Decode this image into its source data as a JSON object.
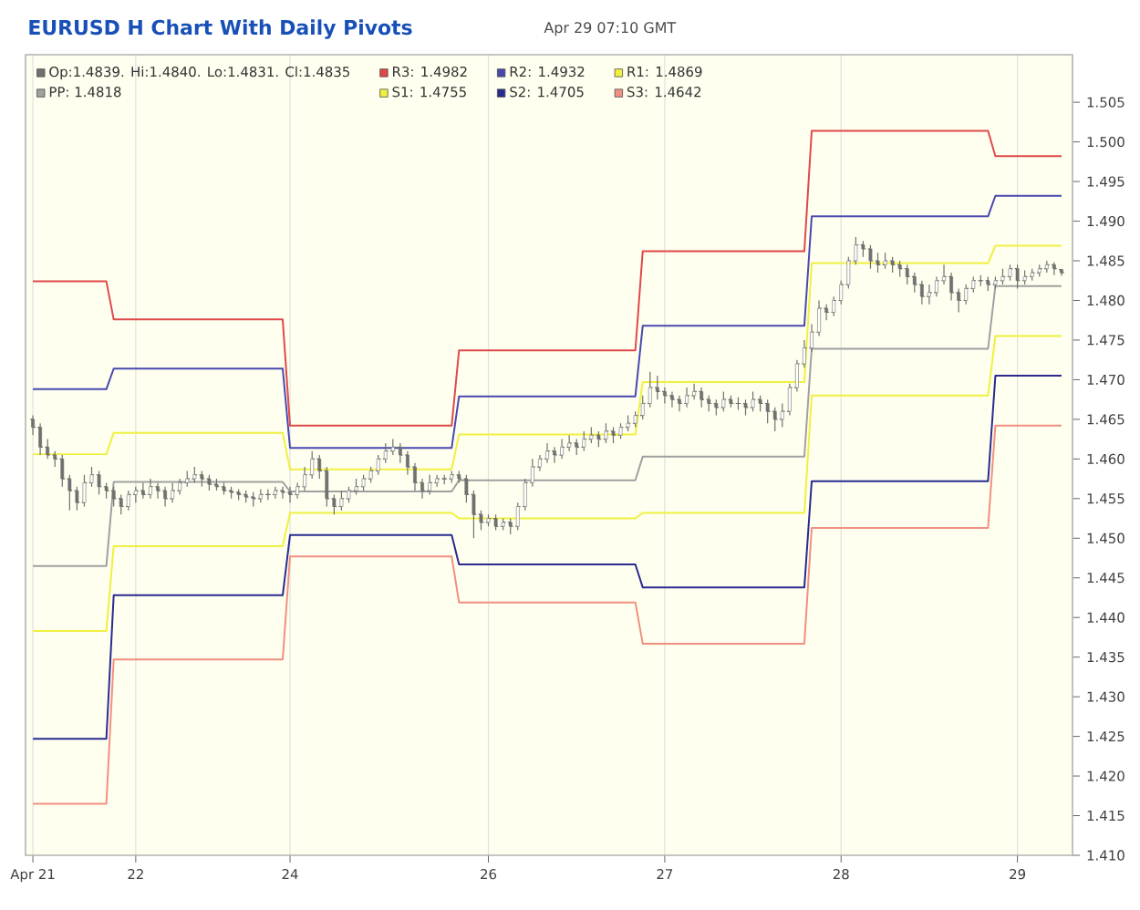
{
  "chart_data": {
    "type": "candlestick",
    "title": "EURUSD H Chart With Daily Pivots",
    "subtitle": "Apr 29 07:10 GMT",
    "categories": [
      "Apr 21",
      null,
      null,
      null,
      null,
      null,
      null,
      null,
      null,
      null,
      null,
      null,
      null,
      null,
      "22",
      null,
      null,
      null,
      null,
      null,
      null,
      null,
      null,
      null,
      null,
      null,
      null,
      null,
      null,
      null,
      null,
      null,
      null,
      null,
      null,
      "24",
      null,
      null,
      null,
      null,
      null,
      null,
      null,
      null,
      null,
      null,
      null,
      null,
      null,
      null,
      null,
      null,
      null,
      null,
      null,
      null,
      null,
      null,
      null,
      null,
      null,
      null,
      "26",
      null,
      null,
      null,
      null,
      null,
      null,
      null,
      null,
      null,
      null,
      null,
      null,
      null,
      null,
      null,
      null,
      null,
      null,
      null,
      null,
      null,
      null,
      null,
      "27",
      null,
      null,
      null,
      null,
      null,
      null,
      null,
      null,
      null,
      null,
      null,
      null,
      null,
      null,
      null,
      null,
      null,
      null,
      null,
      null,
      null,
      null,
      null,
      "28",
      null,
      null,
      null,
      null,
      null,
      null,
      null,
      null,
      null,
      null,
      null,
      null,
      null,
      null,
      null,
      null,
      null,
      null,
      null,
      null,
      null,
      null,
      null,
      "29",
      null,
      null,
      null,
      null,
      null,
      null
    ],
    "ylim": [
      1.41,
      1.511
    ],
    "yticks": [
      {
        "value": 1.41,
        "label": "1.410"
      },
      1.415,
      {
        "value": 1.42,
        "label": "1.420"
      },
      1.425,
      {
        "value": 1.43,
        "label": "1.430"
      },
      1.435,
      {
        "value": 1.44,
        "label": "1.440"
      },
      1.445,
      {
        "value": 1.45,
        "label": "1.450"
      },
      1.455,
      {
        "value": 1.46,
        "label": "1.460"
      },
      1.465,
      {
        "value": 1.47,
        "label": "1.470"
      },
      1.475,
      {
        "value": 1.48,
        "label": "1.480"
      },
      1.485,
      {
        "value": 1.49,
        "label": "1.490"
      },
      1.495,
      {
        "value": 1.5,
        "label": "1.500"
      },
      1.505
    ],
    "grid": "x",
    "legend": "top left",
    "series": [
      {
        "name": "Op:1.4839. Hi:1.4840. Lo:1.4831. Cl:1.4835",
        "color": "#707070",
        "ohlc": [
          [
            1.465,
            1.4655,
            1.463,
            1.464
          ],
          [
            1.464,
            1.4645,
            1.4605,
            1.4615
          ],
          [
            1.4615,
            1.4625,
            1.46,
            1.4605
          ],
          [
            1.4605,
            1.461,
            1.459,
            1.46
          ],
          [
            1.46,
            1.4605,
            1.4565,
            1.4575
          ],
          [
            1.4575,
            1.458,
            1.4535,
            1.456
          ],
          [
            1.456,
            1.4565,
            1.4535,
            1.4545
          ],
          [
            1.4545,
            1.458,
            1.454,
            1.457
          ],
          [
            1.457,
            1.459,
            1.4565,
            1.458
          ],
          [
            1.458,
            1.4585,
            1.4555,
            1.4565
          ],
          [
            1.4565,
            1.457,
            1.455,
            1.456
          ],
          [
            1.456,
            1.4565,
            1.454,
            1.455
          ],
          [
            1.455,
            1.4555,
            1.453,
            1.454
          ],
          [
            1.454,
            1.456,
            1.4535,
            1.4555
          ],
          [
            1.4555,
            1.4565,
            1.4545,
            1.456
          ],
          [
            1.456,
            1.457,
            1.455,
            1.4555
          ],
          [
            1.4555,
            1.4575,
            1.455,
            1.4565
          ],
          [
            1.4565,
            1.457,
            1.455,
            1.456
          ],
          [
            1.456,
            1.4565,
            1.454,
            1.455
          ],
          [
            1.455,
            1.457,
            1.4545,
            1.456
          ],
          [
            1.456,
            1.4575,
            1.4555,
            1.457
          ],
          [
            1.457,
            1.4585,
            1.4565,
            1.4575
          ],
          [
            1.4575,
            1.459,
            1.457,
            1.458
          ],
          [
            1.458,
            1.4585,
            1.4565,
            1.4575
          ],
          [
            1.4575,
            1.458,
            1.456,
            1.4568
          ],
          [
            1.4568,
            1.4575,
            1.456,
            1.4565
          ],
          [
            1.4565,
            1.457,
            1.4555,
            1.456
          ],
          [
            1.456,
            1.4565,
            1.455,
            1.4558
          ],
          [
            1.4558,
            1.4562,
            1.4548,
            1.4555
          ],
          [
            1.4555,
            1.456,
            1.4545,
            1.4552
          ],
          [
            1.4552,
            1.4558,
            1.454,
            1.455
          ],
          [
            1.455,
            1.4562,
            1.4545,
            1.4555
          ],
          [
            1.4555,
            1.4562,
            1.4548,
            1.4555
          ],
          [
            1.4555,
            1.4565,
            1.455,
            1.456
          ],
          [
            1.456,
            1.4565,
            1.455,
            1.4558
          ],
          [
            1.4558,
            1.4565,
            1.4545,
            1.4555
          ],
          [
            1.4555,
            1.457,
            1.455,
            1.4565
          ],
          [
            1.4565,
            1.459,
            1.456,
            1.458
          ],
          [
            1.458,
            1.461,
            1.4575,
            1.46
          ],
          [
            1.46,
            1.4605,
            1.4575,
            1.4585
          ],
          [
            1.4585,
            1.459,
            1.454,
            1.455
          ],
          [
            1.455,
            1.4555,
            1.453,
            1.454
          ],
          [
            1.454,
            1.456,
            1.4535,
            1.455
          ],
          [
            1.455,
            1.4565,
            1.4545,
            1.456
          ],
          [
            1.456,
            1.4575,
            1.4555,
            1.4565
          ],
          [
            1.4565,
            1.458,
            1.456,
            1.4575
          ],
          [
            1.4575,
            1.459,
            1.457,
            1.4585
          ],
          [
            1.4585,
            1.4605,
            1.458,
            1.46
          ],
          [
            1.46,
            1.462,
            1.4595,
            1.461
          ],
          [
            1.461,
            1.4625,
            1.4605,
            1.4615
          ],
          [
            1.4615,
            1.462,
            1.4595,
            1.4605
          ],
          [
            1.4605,
            1.461,
            1.458,
            1.459
          ],
          [
            1.459,
            1.4595,
            1.456,
            1.457
          ],
          [
            1.457,
            1.4575,
            1.455,
            1.456
          ],
          [
            1.456,
            1.458,
            1.4555,
            1.457
          ],
          [
            1.457,
            1.458,
            1.4565,
            1.4575
          ],
          [
            1.4575,
            1.458,
            1.4568,
            1.4575
          ],
          [
            1.4575,
            1.4585,
            1.457,
            1.458
          ],
          [
            1.458,
            1.4585,
            1.457,
            1.4575
          ],
          [
            1.4575,
            1.458,
            1.4545,
            1.4555
          ],
          [
            1.4555,
            1.456,
            1.45,
            1.453
          ],
          [
            1.453,
            1.4535,
            1.451,
            1.452
          ],
          [
            1.452,
            1.453,
            1.4515,
            1.4525
          ],
          [
            1.4525,
            1.453,
            1.451,
            1.4515
          ],
          [
            1.4515,
            1.4525,
            1.451,
            1.452
          ],
          [
            1.452,
            1.4525,
            1.4505,
            1.4515
          ],
          [
            1.4515,
            1.4545,
            1.451,
            1.454
          ],
          [
            1.454,
            1.4575,
            1.4535,
            1.457
          ],
          [
            1.457,
            1.46,
            1.4565,
            1.459
          ],
          [
            1.459,
            1.4605,
            1.4585,
            1.46
          ],
          [
            1.46,
            1.462,
            1.4595,
            1.461
          ],
          [
            1.461,
            1.4615,
            1.4595,
            1.4605
          ],
          [
            1.4605,
            1.4625,
            1.46,
            1.4615
          ],
          [
            1.4615,
            1.463,
            1.461,
            1.462
          ],
          [
            1.462,
            1.4625,
            1.4605,
            1.4615
          ],
          [
            1.4615,
            1.4635,
            1.461,
            1.4625
          ],
          [
            1.4625,
            1.464,
            1.462,
            1.463
          ],
          [
            1.463,
            1.4635,
            1.4615,
            1.4625
          ],
          [
            1.4625,
            1.4645,
            1.462,
            1.4635
          ],
          [
            1.4635,
            1.464,
            1.462,
            1.463
          ],
          [
            1.463,
            1.4645,
            1.4625,
            1.464
          ],
          [
            1.464,
            1.4655,
            1.4635,
            1.4645
          ],
          [
            1.4645,
            1.466,
            1.464,
            1.4655
          ],
          [
            1.4655,
            1.468,
            1.465,
            1.467
          ],
          [
            1.467,
            1.471,
            1.4665,
            1.469
          ],
          [
            1.469,
            1.4705,
            1.4675,
            1.4685
          ],
          [
            1.4685,
            1.469,
            1.467,
            1.468
          ],
          [
            1.468,
            1.4685,
            1.4665,
            1.4675
          ],
          [
            1.4675,
            1.468,
            1.466,
            1.467
          ],
          [
            1.467,
            1.469,
            1.4665,
            1.468
          ],
          [
            1.468,
            1.4695,
            1.4675,
            1.4685
          ],
          [
            1.4685,
            1.469,
            1.4665,
            1.4675
          ],
          [
            1.4675,
            1.468,
            1.466,
            1.467
          ],
          [
            1.467,
            1.4675,
            1.4655,
            1.4665
          ],
          [
            1.4665,
            1.4685,
            1.466,
            1.4675
          ],
          [
            1.4675,
            1.468,
            1.4665,
            1.467
          ],
          [
            1.467,
            1.4678,
            1.4662,
            1.467
          ],
          [
            1.467,
            1.4675,
            1.4655,
            1.4665
          ],
          [
            1.4665,
            1.4685,
            1.466,
            1.4675
          ],
          [
            1.4675,
            1.468,
            1.466,
            1.467
          ],
          [
            1.467,
            1.4675,
            1.4645,
            1.466
          ],
          [
            1.466,
            1.4665,
            1.4635,
            1.465
          ],
          [
            1.465,
            1.467,
            1.464,
            1.466
          ],
          [
            1.466,
            1.4695,
            1.4655,
            1.469
          ],
          [
            1.469,
            1.4725,
            1.4685,
            1.472
          ],
          [
            1.472,
            1.475,
            1.4715,
            1.474
          ],
          [
            1.474,
            1.477,
            1.4735,
            1.476
          ],
          [
            1.476,
            1.48,
            1.4755,
            1.479
          ],
          [
            1.479,
            1.4795,
            1.4775,
            1.4785
          ],
          [
            1.4785,
            1.4805,
            1.478,
            1.48
          ],
          [
            1.48,
            1.4825,
            1.4795,
            1.482
          ],
          [
            1.482,
            1.4855,
            1.4815,
            1.485
          ],
          [
            1.485,
            1.488,
            1.4845,
            1.487
          ],
          [
            1.487,
            1.4875,
            1.4855,
            1.4865
          ],
          [
            1.4865,
            1.487,
            1.484,
            1.485
          ],
          [
            1.485,
            1.486,
            1.4835,
            1.4845
          ],
          [
            1.4845,
            1.486,
            1.484,
            1.485
          ],
          [
            1.485,
            1.4855,
            1.4835,
            1.4845
          ],
          [
            1.4845,
            1.485,
            1.483,
            1.484
          ],
          [
            1.484,
            1.4845,
            1.482,
            1.483
          ],
          [
            1.483,
            1.4835,
            1.481,
            1.482
          ],
          [
            1.482,
            1.4825,
            1.4795,
            1.4805
          ],
          [
            1.4805,
            1.482,
            1.4795,
            1.481
          ],
          [
            1.481,
            1.483,
            1.4805,
            1.4825
          ],
          [
            1.4825,
            1.4845,
            1.482,
            1.483
          ],
          [
            1.483,
            1.4835,
            1.48,
            1.481
          ],
          [
            1.481,
            1.4815,
            1.4785,
            1.48
          ],
          [
            1.48,
            1.482,
            1.4795,
            1.4815
          ],
          [
            1.4815,
            1.483,
            1.481,
            1.4825
          ],
          [
            1.4825,
            1.4832,
            1.4818,
            1.4825
          ],
          [
            1.4825,
            1.483,
            1.4812,
            1.482
          ],
          [
            1.482,
            1.483,
            1.4815,
            1.4825
          ],
          [
            1.4825,
            1.484,
            1.482,
            1.483
          ],
          [
            1.483,
            1.4845,
            1.4825,
            1.484
          ],
          [
            1.484,
            1.4845,
            1.4815,
            1.4825
          ],
          [
            1.4825,
            1.4838,
            1.482,
            1.483
          ],
          [
            1.483,
            1.484,
            1.4825,
            1.4835
          ],
          [
            1.4835,
            1.4845,
            1.483,
            1.484
          ],
          [
            1.484,
            1.485,
            1.4835,
            1.4845
          ],
          [
            1.4845,
            1.4848,
            1.4832,
            1.484
          ],
          [
            1.4839,
            1.484,
            1.4831,
            1.4835
          ]
        ]
      },
      {
        "type": "line",
        "name": "R3: 1.4982",
        "color": "#e04848",
        "values": [
          1.4824,
          1.4824,
          1.4824,
          1.4824,
          1.4824,
          1.4824,
          1.4824,
          1.4824,
          1.4824,
          1.4824,
          1.4824,
          1.4776,
          1.4776,
          1.4776,
          1.4776,
          1.4776,
          1.4776,
          1.4776,
          1.4776,
          1.4776,
          1.4776,
          1.4776,
          1.4776,
          1.4776,
          1.4776,
          1.4776,
          1.4776,
          1.4776,
          1.4776,
          1.4776,
          1.4776,
          1.4776,
          1.4776,
          1.4776,
          1.4776,
          1.4642,
          1.4642,
          1.4642,
          1.4642,
          1.4642,
          1.4642,
          1.4642,
          1.4642,
          1.4642,
          1.4642,
          1.4642,
          1.4642,
          1.4642,
          1.4642,
          1.4642,
          1.4642,
          1.4642,
          1.4642,
          1.4642,
          1.4642,
          1.4642,
          1.4642,
          1.4642,
          1.4737,
          1.4737,
          1.4737,
          1.4737,
          1.4737,
          1.4737,
          1.4737,
          1.4737,
          1.4737,
          1.4737,
          1.4737,
          1.4737,
          1.4737,
          1.4737,
          1.4737,
          1.4737,
          1.4737,
          1.4737,
          1.4737,
          1.4737,
          1.4737,
          1.4737,
          1.4737,
          1.4737,
          1.4737,
          1.4862,
          1.4862,
          1.4862,
          1.4862,
          1.4862,
          1.4862,
          1.4862,
          1.4862,
          1.4862,
          1.4862,
          1.4862,
          1.4862,
          1.4862,
          1.4862,
          1.4862,
          1.4862,
          1.4862,
          1.4862,
          1.4862,
          1.4862,
          1.4862,
          1.4862,
          1.4862,
          1.5014,
          1.5014,
          1.5014,
          1.5014,
          1.5014,
          1.5014,
          1.5014,
          1.5014,
          1.5014,
          1.5014,
          1.5014,
          1.5014,
          1.5014,
          1.5014,
          1.5014,
          1.5014,
          1.5014,
          1.5014,
          1.5014,
          1.5014,
          1.5014,
          1.5014,
          1.5014,
          1.5014,
          1.5014,
          1.4982,
          1.4982,
          1.4982,
          1.4982,
          1.4982,
          1.4982,
          1.4982,
          1.4982,
          1.4982,
          1.4982
        ]
      },
      {
        "type": "line",
        "name": "R2: 1.4932",
        "color": "#4848b0",
        "values": [
          1.4688,
          1.4688,
          1.4688,
          1.4688,
          1.4688,
          1.4688,
          1.4688,
          1.4688,
          1.4688,
          1.4688,
          1.4688,
          1.4714,
          1.4714,
          1.4714,
          1.4714,
          1.4714,
          1.4714,
          1.4714,
          1.4714,
          1.4714,
          1.4714,
          1.4714,
          1.4714,
          1.4714,
          1.4714,
          1.4714,
          1.4714,
          1.4714,
          1.4714,
          1.4714,
          1.4714,
          1.4714,
          1.4714,
          1.4714,
          1.4714,
          1.4614,
          1.4614,
          1.4614,
          1.4614,
          1.4614,
          1.4614,
          1.4614,
          1.4614,
          1.4614,
          1.4614,
          1.4614,
          1.4614,
          1.4614,
          1.4614,
          1.4614,
          1.4614,
          1.4614,
          1.4614,
          1.4614,
          1.4614,
          1.4614,
          1.4614,
          1.4614,
          1.4679,
          1.4679,
          1.4679,
          1.4679,
          1.4679,
          1.4679,
          1.4679,
          1.4679,
          1.4679,
          1.4679,
          1.4679,
          1.4679,
          1.4679,
          1.4679,
          1.4679,
          1.4679,
          1.4679,
          1.4679,
          1.4679,
          1.4679,
          1.4679,
          1.4679,
          1.4679,
          1.4679,
          1.4679,
          1.4768,
          1.4768,
          1.4768,
          1.4768,
          1.4768,
          1.4768,
          1.4768,
          1.4768,
          1.4768,
          1.4768,
          1.4768,
          1.4768,
          1.4768,
          1.4768,
          1.4768,
          1.4768,
          1.4768,
          1.4768,
          1.4768,
          1.4768,
          1.4768,
          1.4768,
          1.4768,
          1.4906,
          1.4906,
          1.4906,
          1.4906,
          1.4906,
          1.4906,
          1.4906,
          1.4906,
          1.4906,
          1.4906,
          1.4906,
          1.4906,
          1.4906,
          1.4906,
          1.4906,
          1.4906,
          1.4906,
          1.4906,
          1.4906,
          1.4906,
          1.4906,
          1.4906,
          1.4906,
          1.4906,
          1.4906,
          1.4932,
          1.4932,
          1.4932,
          1.4932,
          1.4932,
          1.4932,
          1.4932,
          1.4932,
          1.4932,
          1.4932
        ]
      },
      {
        "type": "line",
        "name": "R1: 1.4869",
        "color": "#f0f040",
        "values": [
          1.4606,
          1.4606,
          1.4606,
          1.4606,
          1.4606,
          1.4606,
          1.4606,
          1.4606,
          1.4606,
          1.4606,
          1.4606,
          1.4633,
          1.4633,
          1.4633,
          1.4633,
          1.4633,
          1.4633,
          1.4633,
          1.4633,
          1.4633,
          1.4633,
          1.4633,
          1.4633,
          1.4633,
          1.4633,
          1.4633,
          1.4633,
          1.4633,
          1.4633,
          1.4633,
          1.4633,
          1.4633,
          1.4633,
          1.4633,
          1.4633,
          1.4587,
          1.4587,
          1.4587,
          1.4587,
          1.4587,
          1.4587,
          1.4587,
          1.4587,
          1.4587,
          1.4587,
          1.4587,
          1.4587,
          1.4587,
          1.4587,
          1.4587,
          1.4587,
          1.4587,
          1.4587,
          1.4587,
          1.4587,
          1.4587,
          1.4587,
          1.4587,
          1.4631,
          1.4631,
          1.4631,
          1.4631,
          1.4631,
          1.4631,
          1.4631,
          1.4631,
          1.4631,
          1.4631,
          1.4631,
          1.4631,
          1.4631,
          1.4631,
          1.4631,
          1.4631,
          1.4631,
          1.4631,
          1.4631,
          1.4631,
          1.4631,
          1.4631,
          1.4631,
          1.4631,
          1.4631,
          1.4697,
          1.4697,
          1.4697,
          1.4697,
          1.4697,
          1.4697,
          1.4697,
          1.4697,
          1.4697,
          1.4697,
          1.4697,
          1.4697,
          1.4697,
          1.4697,
          1.4697,
          1.4697,
          1.4697,
          1.4697,
          1.4697,
          1.4697,
          1.4697,
          1.4697,
          1.4697,
          1.4847,
          1.4847,
          1.4847,
          1.4847,
          1.4847,
          1.4847,
          1.4847,
          1.4847,
          1.4847,
          1.4847,
          1.4847,
          1.4847,
          1.4847,
          1.4847,
          1.4847,
          1.4847,
          1.4847,
          1.4847,
          1.4847,
          1.4847,
          1.4847,
          1.4847,
          1.4847,
          1.4847,
          1.4847,
          1.4869,
          1.4869,
          1.4869,
          1.4869,
          1.4869,
          1.4869,
          1.4869,
          1.4869,
          1.4869,
          1.4869
        ]
      },
      {
        "type": "line",
        "name": "PP: 1.4818",
        "color": "#a0a0a0",
        "values": [
          1.4465,
          1.4465,
          1.4465,
          1.4465,
          1.4465,
          1.4465,
          1.4465,
          1.4465,
          1.4465,
          1.4465,
          1.4465,
          1.4571,
          1.4571,
          1.4571,
          1.4571,
          1.4571,
          1.4571,
          1.4571,
          1.4571,
          1.4571,
          1.4571,
          1.4571,
          1.4571,
          1.4571,
          1.4571,
          1.4571,
          1.4571,
          1.4571,
          1.4571,
          1.4571,
          1.4571,
          1.4571,
          1.4571,
          1.4571,
          1.4571,
          1.4559,
          1.4559,
          1.4559,
          1.4559,
          1.4559,
          1.4559,
          1.4559,
          1.4559,
          1.4559,
          1.4559,
          1.4559,
          1.4559,
          1.4559,
          1.4559,
          1.4559,
          1.4559,
          1.4559,
          1.4559,
          1.4559,
          1.4559,
          1.4559,
          1.4559,
          1.4559,
          1.4573,
          1.4573,
          1.4573,
          1.4573,
          1.4573,
          1.4573,
          1.4573,
          1.4573,
          1.4573,
          1.4573,
          1.4573,
          1.4573,
          1.4573,
          1.4573,
          1.4573,
          1.4573,
          1.4573,
          1.4573,
          1.4573,
          1.4573,
          1.4573,
          1.4573,
          1.4573,
          1.4573,
          1.4573,
          1.4603,
          1.4603,
          1.4603,
          1.4603,
          1.4603,
          1.4603,
          1.4603,
          1.4603,
          1.4603,
          1.4603,
          1.4603,
          1.4603,
          1.4603,
          1.4603,
          1.4603,
          1.4603,
          1.4603,
          1.4603,
          1.4603,
          1.4603,
          1.4603,
          1.4603,
          1.4603,
          1.4739,
          1.4739,
          1.4739,
          1.4739,
          1.4739,
          1.4739,
          1.4739,
          1.4739,
          1.4739,
          1.4739,
          1.4739,
          1.4739,
          1.4739,
          1.4739,
          1.4739,
          1.4739,
          1.4739,
          1.4739,
          1.4739,
          1.4739,
          1.4739,
          1.4739,
          1.4739,
          1.4739,
          1.4739,
          1.4818,
          1.4818,
          1.4818,
          1.4818,
          1.4818,
          1.4818,
          1.4818,
          1.4818,
          1.4818,
          1.4818
        ]
      },
      {
        "type": "line",
        "name": "S1: 1.4755",
        "color": "#f0f040",
        "values": [
          1.4383,
          1.4383,
          1.4383,
          1.4383,
          1.4383,
          1.4383,
          1.4383,
          1.4383,
          1.4383,
          1.4383,
          1.4383,
          1.449,
          1.449,
          1.449,
          1.449,
          1.449,
          1.449,
          1.449,
          1.449,
          1.449,
          1.449,
          1.449,
          1.449,
          1.449,
          1.449,
          1.449,
          1.449,
          1.449,
          1.449,
          1.449,
          1.449,
          1.449,
          1.449,
          1.449,
          1.449,
          1.4532,
          1.4532,
          1.4532,
          1.4532,
          1.4532,
          1.4532,
          1.4532,
          1.4532,
          1.4532,
          1.4532,
          1.4532,
          1.4532,
          1.4532,
          1.4532,
          1.4532,
          1.4532,
          1.4532,
          1.4532,
          1.4532,
          1.4532,
          1.4532,
          1.4532,
          1.4532,
          1.4525,
          1.4525,
          1.4525,
          1.4525,
          1.4525,
          1.4525,
          1.4525,
          1.4525,
          1.4525,
          1.4525,
          1.4525,
          1.4525,
          1.4525,
          1.4525,
          1.4525,
          1.4525,
          1.4525,
          1.4525,
          1.4525,
          1.4525,
          1.4525,
          1.4525,
          1.4525,
          1.4525,
          1.4525,
          1.4532,
          1.4532,
          1.4532,
          1.4532,
          1.4532,
          1.4532,
          1.4532,
          1.4532,
          1.4532,
          1.4532,
          1.4532,
          1.4532,
          1.4532,
          1.4532,
          1.4532,
          1.4532,
          1.4532,
          1.4532,
          1.4532,
          1.4532,
          1.4532,
          1.4532,
          1.4532,
          1.468,
          1.468,
          1.468,
          1.468,
          1.468,
          1.468,
          1.468,
          1.468,
          1.468,
          1.468,
          1.468,
          1.468,
          1.468,
          1.468,
          1.468,
          1.468,
          1.468,
          1.468,
          1.468,
          1.468,
          1.468,
          1.468,
          1.468,
          1.468,
          1.468,
          1.4755,
          1.4755,
          1.4755,
          1.4755,
          1.4755,
          1.4755,
          1.4755,
          1.4755,
          1.4755,
          1.4755
        ]
      },
      {
        "type": "line",
        "name": "S2: 1.4705",
        "color": "#2a2a90",
        "values": [
          1.4247,
          1.4247,
          1.4247,
          1.4247,
          1.4247,
          1.4247,
          1.4247,
          1.4247,
          1.4247,
          1.4247,
          1.4247,
          1.4428,
          1.4428,
          1.4428,
          1.4428,
          1.4428,
          1.4428,
          1.4428,
          1.4428,
          1.4428,
          1.4428,
          1.4428,
          1.4428,
          1.4428,
          1.4428,
          1.4428,
          1.4428,
          1.4428,
          1.4428,
          1.4428,
          1.4428,
          1.4428,
          1.4428,
          1.4428,
          1.4428,
          1.4504,
          1.4504,
          1.4504,
          1.4504,
          1.4504,
          1.4504,
          1.4504,
          1.4504,
          1.4504,
          1.4504,
          1.4504,
          1.4504,
          1.4504,
          1.4504,
          1.4504,
          1.4504,
          1.4504,
          1.4504,
          1.4504,
          1.4504,
          1.4504,
          1.4504,
          1.4504,
          1.4467,
          1.4467,
          1.4467,
          1.4467,
          1.4467,
          1.4467,
          1.4467,
          1.4467,
          1.4467,
          1.4467,
          1.4467,
          1.4467,
          1.4467,
          1.4467,
          1.4467,
          1.4467,
          1.4467,
          1.4467,
          1.4467,
          1.4467,
          1.4467,
          1.4467,
          1.4467,
          1.4467,
          1.4467,
          1.4438,
          1.4438,
          1.4438,
          1.4438,
          1.4438,
          1.4438,
          1.4438,
          1.4438,
          1.4438,
          1.4438,
          1.4438,
          1.4438,
          1.4438,
          1.4438,
          1.4438,
          1.4438,
          1.4438,
          1.4438,
          1.4438,
          1.4438,
          1.4438,
          1.4438,
          1.4438,
          1.4572,
          1.4572,
          1.4572,
          1.4572,
          1.4572,
          1.4572,
          1.4572,
          1.4572,
          1.4572,
          1.4572,
          1.4572,
          1.4572,
          1.4572,
          1.4572,
          1.4572,
          1.4572,
          1.4572,
          1.4572,
          1.4572,
          1.4572,
          1.4572,
          1.4572,
          1.4572,
          1.4572,
          1.4572,
          1.4705,
          1.4705,
          1.4705,
          1.4705,
          1.4705,
          1.4705,
          1.4705,
          1.4705,
          1.4705,
          1.4705
        ]
      },
      {
        "type": "line",
        "name": "S3: 1.4642",
        "color": "#f09080",
        "values": [
          1.4165,
          1.4165,
          1.4165,
          1.4165,
          1.4165,
          1.4165,
          1.4165,
          1.4165,
          1.4165,
          1.4165,
          1.4165,
          1.4347,
          1.4347,
          1.4347,
          1.4347,
          1.4347,
          1.4347,
          1.4347,
          1.4347,
          1.4347,
          1.4347,
          1.4347,
          1.4347,
          1.4347,
          1.4347,
          1.4347,
          1.4347,
          1.4347,
          1.4347,
          1.4347,
          1.4347,
          1.4347,
          1.4347,
          1.4347,
          1.4347,
          1.4477,
          1.4477,
          1.4477,
          1.4477,
          1.4477,
          1.4477,
          1.4477,
          1.4477,
          1.4477,
          1.4477,
          1.4477,
          1.4477,
          1.4477,
          1.4477,
          1.4477,
          1.4477,
          1.4477,
          1.4477,
          1.4477,
          1.4477,
          1.4477,
          1.4477,
          1.4477,
          1.4419,
          1.4419,
          1.4419,
          1.4419,
          1.4419,
          1.4419,
          1.4419,
          1.4419,
          1.4419,
          1.4419,
          1.4419,
          1.4419,
          1.4419,
          1.4419,
          1.4419,
          1.4419,
          1.4419,
          1.4419,
          1.4419,
          1.4419,
          1.4419,
          1.4419,
          1.4419,
          1.4419,
          1.4419,
          1.4367,
          1.4367,
          1.4367,
          1.4367,
          1.4367,
          1.4367,
          1.4367,
          1.4367,
          1.4367,
          1.4367,
          1.4367,
          1.4367,
          1.4367,
          1.4367,
          1.4367,
          1.4367,
          1.4367,
          1.4367,
          1.4367,
          1.4367,
          1.4367,
          1.4367,
          1.4367,
          1.4513,
          1.4513,
          1.4513,
          1.4513,
          1.4513,
          1.4513,
          1.4513,
          1.4513,
          1.4513,
          1.4513,
          1.4513,
          1.4513,
          1.4513,
          1.4513,
          1.4513,
          1.4513,
          1.4513,
          1.4513,
          1.4513,
          1.4513,
          1.4513,
          1.4513,
          1.4513,
          1.4513,
          1.4513,
          1.4642,
          1.4642,
          1.4642,
          1.4642,
          1.4642,
          1.4642,
          1.4642,
          1.4642,
          1.4642,
          1.4642
        ]
      }
    ]
  }
}
